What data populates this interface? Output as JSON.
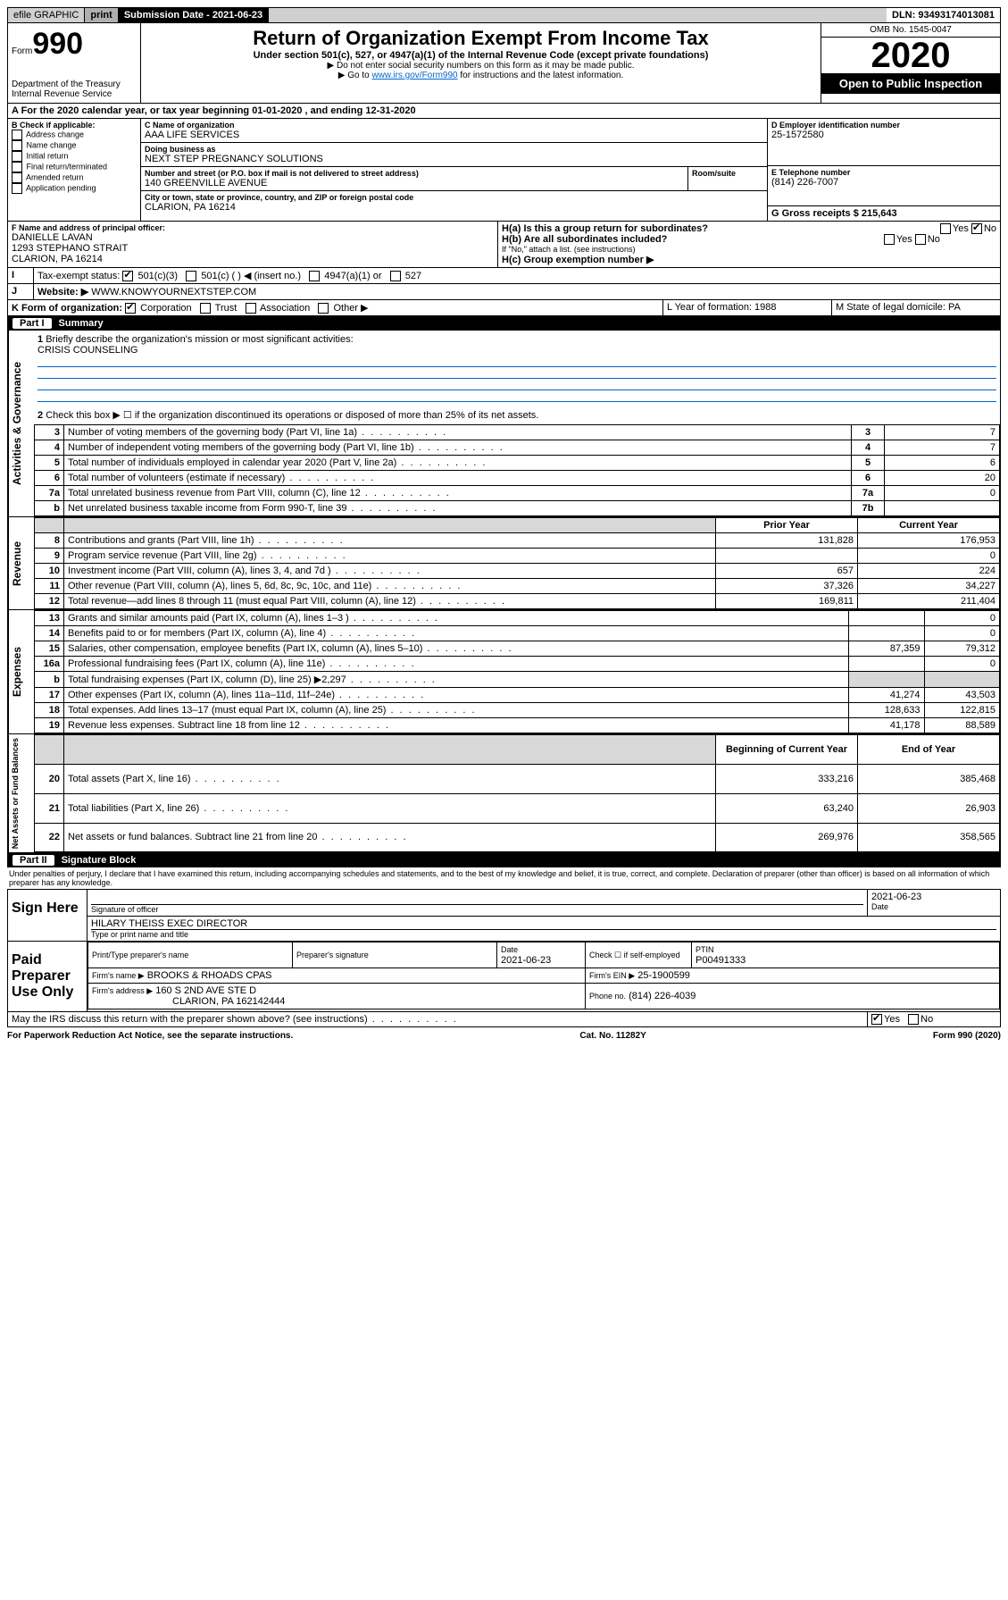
{
  "topbar": {
    "efile": "efile GRAPHIC",
    "print": "print",
    "sub_label": "Submission Date - 2021-06-23",
    "dln": "DLN: 93493174013081"
  },
  "header": {
    "form_word": "Form",
    "form_num": "990",
    "dept": "Department of the Treasury",
    "irs": "Internal Revenue Service",
    "title": "Return of Organization Exempt From Income Tax",
    "subtitle": "Under section 501(c), 527, or 4947(a)(1) of the Internal Revenue Code (except private foundations)",
    "note1": "▶ Do not enter social security numbers on this form as it may be made public.",
    "note2_pre": "▶ Go to ",
    "note2_link": "www.irs.gov/Form990",
    "note2_post": " for instructions and the latest information.",
    "omb": "OMB No. 1545-0047",
    "year": "2020",
    "open": "Open to Public Inspection"
  },
  "period": {
    "line": "A For the 2020 calendar year, or tax year beginning 01-01-2020     , and ending 12-31-2020"
  },
  "boxB": {
    "label": "B Check if applicable:",
    "items": [
      "Address change",
      "Name change",
      "Initial return",
      "Final return/terminated",
      "Amended return",
      "Application pending"
    ]
  },
  "boxC": {
    "name_label": "C Name of organization",
    "name": "AAA LIFE SERVICES",
    "dba_label": "Doing business as",
    "dba": "NEXT STEP PREGNANCY SOLUTIONS",
    "addr_label": "Number and street (or P.O. box if mail is not delivered to street address)",
    "room_label": "Room/suite",
    "addr": "140 GREENVILLE AVENUE",
    "city_label": "City or town, state or province, country, and ZIP or foreign postal code",
    "city": "CLARION, PA  16214"
  },
  "boxD": {
    "label": "D Employer identification number",
    "value": "25-1572580"
  },
  "boxE": {
    "label": "E Telephone number",
    "value": "(814) 226-7007"
  },
  "boxG": {
    "label": "G Gross receipts $ 215,643"
  },
  "boxF": {
    "label": "F  Name and address of principal officer:",
    "name": "DANIELLE LAVAN",
    "addr": "1293 STEPHANO STRAIT",
    "city": "CLARION, PA  16214"
  },
  "boxH": {
    "a": "H(a)  Is this a group return for subordinates?",
    "b": "H(b)  Are all subordinates included?",
    "note": "If \"No,\" attach a list. (see instructions)",
    "c": "H(c)  Group exemption number ▶"
  },
  "boxI": {
    "label": "Tax-exempt status:",
    "opts": [
      "501(c)(3)",
      "501(c) (   ) ◀ (insert no.)",
      "4947(a)(1) or",
      "527"
    ]
  },
  "boxJ": {
    "label": "Website: ▶",
    "value": "WWW.KNOWYOURNEXTSTEP.COM"
  },
  "boxK": {
    "label": "K Form of organization:",
    "opts": [
      "Corporation",
      "Trust",
      "Association",
      "Other ▶"
    ]
  },
  "boxL": {
    "label": "L Year of formation: 1988"
  },
  "boxM": {
    "label": "M State of legal domicile: PA"
  },
  "part1": {
    "num": "Part I",
    "title": "Summary"
  },
  "summary": {
    "l1": "Briefly describe the organization's mission or most significant activities:",
    "l1v": "CRISIS COUNSELING",
    "l2": "Check this box ▶ ☐  if the organization discontinued its operations or disposed of more than 25% of its net assets.",
    "rows_ag": [
      {
        "n": "3",
        "t": "Number of voting members of the governing body (Part VI, line 1a)",
        "c": "3",
        "v": "7"
      },
      {
        "n": "4",
        "t": "Number of independent voting members of the governing body (Part VI, line 1b)",
        "c": "4",
        "v": "7"
      },
      {
        "n": "5",
        "t": "Total number of individuals employed in calendar year 2020 (Part V, line 2a)",
        "c": "5",
        "v": "6"
      },
      {
        "n": "6",
        "t": "Total number of volunteers (estimate if necessary)",
        "c": "6",
        "v": "20"
      },
      {
        "n": "7a",
        "t": "Total unrelated business revenue from Part VIII, column (C), line 12",
        "c": "7a",
        "v": "0"
      },
      {
        "n": "b",
        "t": "Net unrelated business taxable income from Form 990-T, line 39",
        "c": "7b",
        "v": ""
      }
    ],
    "col_prior": "Prior Year",
    "col_current": "Current Year",
    "rows_rev": [
      {
        "n": "8",
        "t": "Contributions and grants (Part VIII, line 1h)",
        "p": "131,828",
        "c": "176,953"
      },
      {
        "n": "9",
        "t": "Program service revenue (Part VIII, line 2g)",
        "p": "",
        "c": "0"
      },
      {
        "n": "10",
        "t": "Investment income (Part VIII, column (A), lines 3, 4, and 7d )",
        "p": "657",
        "c": "224"
      },
      {
        "n": "11",
        "t": "Other revenue (Part VIII, column (A), lines 5, 6d, 8c, 9c, 10c, and 11e)",
        "p": "37,326",
        "c": "34,227"
      },
      {
        "n": "12",
        "t": "Total revenue—add lines 8 through 11 (must equal Part VIII, column (A), line 12)",
        "p": "169,811",
        "c": "211,404"
      }
    ],
    "rows_exp": [
      {
        "n": "13",
        "t": "Grants and similar amounts paid (Part IX, column (A), lines 1–3 )",
        "p": "",
        "c": "0"
      },
      {
        "n": "14",
        "t": "Benefits paid to or for members (Part IX, column (A), line 4)",
        "p": "",
        "c": "0"
      },
      {
        "n": "15",
        "t": "Salaries, other compensation, employee benefits (Part IX, column (A), lines 5–10)",
        "p": "87,359",
        "c": "79,312"
      },
      {
        "n": "16a",
        "t": "Professional fundraising fees (Part IX, column (A), line 11e)",
        "p": "",
        "c": "0"
      },
      {
        "n": "b",
        "t": "Total fundraising expenses (Part IX, column (D), line 25) ▶2,297",
        "p": "__shade__",
        "c": "__shade__"
      },
      {
        "n": "17",
        "t": "Other expenses (Part IX, column (A), lines 11a–11d, 11f–24e)",
        "p": "41,274",
        "c": "43,503"
      },
      {
        "n": "18",
        "t": "Total expenses. Add lines 13–17 (must equal Part IX, column (A), line 25)",
        "p": "128,633",
        "c": "122,815"
      },
      {
        "n": "19",
        "t": "Revenue less expenses. Subtract line 18 from line 12",
        "p": "41,178",
        "c": "88,589"
      }
    ],
    "col_begin": "Beginning of Current Year",
    "col_end": "End of Year",
    "rows_net": [
      {
        "n": "20",
        "t": "Total assets (Part X, line 16)",
        "p": "333,216",
        "c": "385,468"
      },
      {
        "n": "21",
        "t": "Total liabilities (Part X, line 26)",
        "p": "63,240",
        "c": "26,903"
      },
      {
        "n": "22",
        "t": "Net assets or fund balances. Subtract line 21 from line 20",
        "p": "269,976",
        "c": "358,565"
      }
    ]
  },
  "part2": {
    "num": "Part II",
    "title": "Signature Block"
  },
  "sig": {
    "perjury": "Under penalties of perjury, I declare that I have examined this return, including accompanying schedules and statements, and to the best of my knowledge and belief, it is true, correct, and complete. Declaration of preparer (other than officer) is based on all information of which preparer has any knowledge.",
    "sign_here": "Sign Here",
    "sig_officer": "Signature of officer",
    "date": "2021-06-23",
    "date_label": "Date",
    "name_title": "HILARY THEISS  EXEC DIRECTOR",
    "type_label": "Type or print name and title",
    "paid": "Paid Preparer Use Only",
    "prep_name_label": "Print/Type preparer's name",
    "prep_sig_label": "Preparer's signature",
    "prep_date_label": "Date",
    "prep_date": "2021-06-23",
    "check_self": "Check ☐ if self-employed",
    "ptin_label": "PTIN",
    "ptin": "P00491333",
    "firm_name_label": "Firm's name    ▶",
    "firm_name": "BROOKS & RHOADS CPAS",
    "firm_ein_label": "Firm's EIN ▶",
    "firm_ein": "25-1900599",
    "firm_addr_label": "Firm's address ▶",
    "firm_addr": "160 S 2ND AVE STE D",
    "firm_city": "CLARION, PA  162142444",
    "phone_label": "Phone no.",
    "phone": "(814) 226-4039",
    "discuss": "May the IRS discuss this return with the preparer shown above? (see instructions)",
    "yes": "Yes",
    "no": "No"
  },
  "footer": {
    "left": "For Paperwork Reduction Act Notice, see the separate instructions.",
    "mid": "Cat. No. 11282Y",
    "right": "Form 990 (2020)"
  }
}
